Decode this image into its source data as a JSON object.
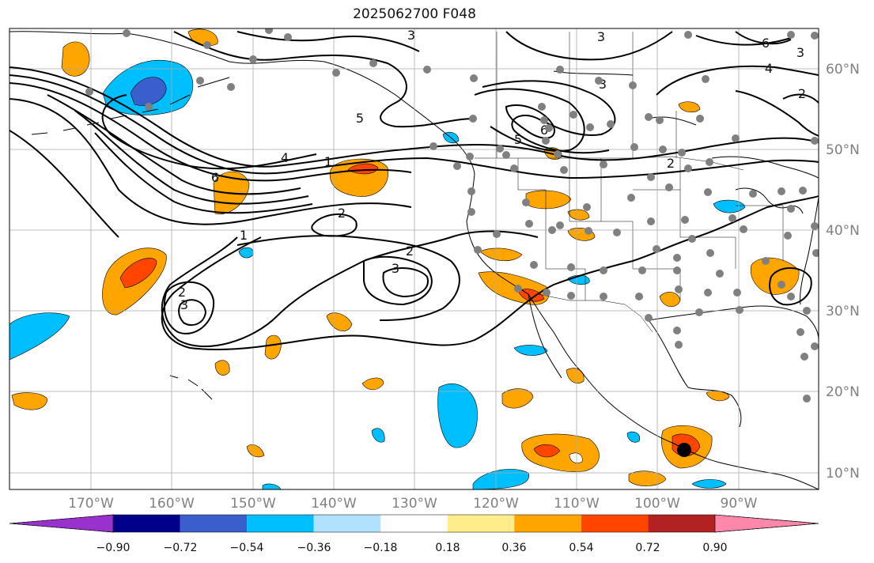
{
  "title": "2025062700 F048",
  "map": {
    "lon_labels": [
      "170°W",
      "160°W",
      "150°W",
      "140°W",
      "130°W",
      "120°W",
      "110°W",
      "100°W",
      "90°W"
    ],
    "lat_labels": [
      "60°N",
      "50°N",
      "40°N",
      "30°N",
      "20°N",
      "10°N"
    ],
    "contour_labels": [
      "3",
      "3",
      "6",
      "3",
      "4",
      "2",
      "6",
      "5",
      "5",
      "3",
      "4",
      "1",
      "2",
      "6",
      "2",
      "1",
      "2",
      "3",
      "2",
      "3"
    ]
  },
  "colorbar": {
    "ticks": [
      "−0.90",
      "−0.72",
      "−0.54",
      "−0.36",
      "−0.18",
      "0.18",
      "0.36",
      "0.54",
      "0.72",
      "0.90"
    ],
    "colors": [
      "#9932cc",
      "#00008b",
      "#3a5fcd",
      "#00bfff",
      "#b0e2ff",
      "#ffffff",
      "#ffec8b",
      "#ffa500",
      "#ff4500",
      "#b22222",
      "#ff88aa"
    ]
  },
  "colors": {
    "orange": "#ffa500",
    "red": "#ff4500",
    "cyan": "#00bfff",
    "blue": "#3a5fcd",
    "station": "#808080",
    "grid": "#aaaaaa"
  }
}
